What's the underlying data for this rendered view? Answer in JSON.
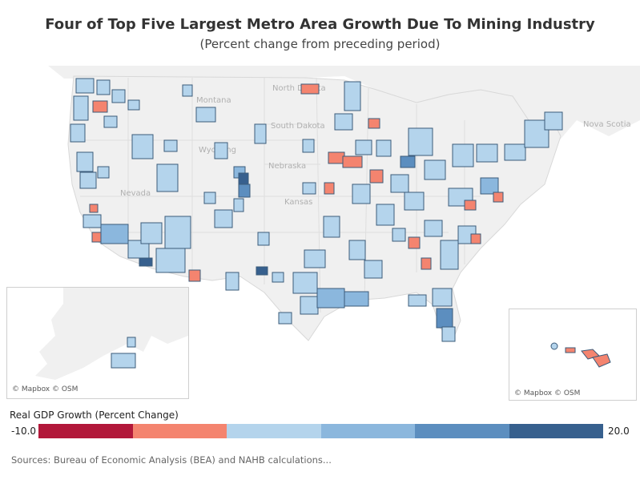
{
  "header": {
    "title": "Four of Top Five Largest Metro Area Growth Due To Mining Industry",
    "subtitle": "(Percent change from preceding period)"
  },
  "map": {
    "place_labels": [
      "North Dakota",
      "South Dakota",
      "Montana",
      "Wyoming",
      "Nebraska",
      "Kansas",
      "Nevada",
      "Nova Scotia"
    ],
    "credit": "© Mapbox © OSM"
  },
  "legend": {
    "title": "Real GDP Growth (Percent Change)",
    "min_label": "-10.0",
    "max_label": "20.0",
    "colors": [
      "#b2183a",
      "#f4846f",
      "#b4d4ec",
      "#8bb7dd",
      "#5c8ebf",
      "#37608e"
    ]
  },
  "footer": {
    "source": "Sources: Bureau of Economic Analysis (BEA) and NAHB calculations..."
  }
}
